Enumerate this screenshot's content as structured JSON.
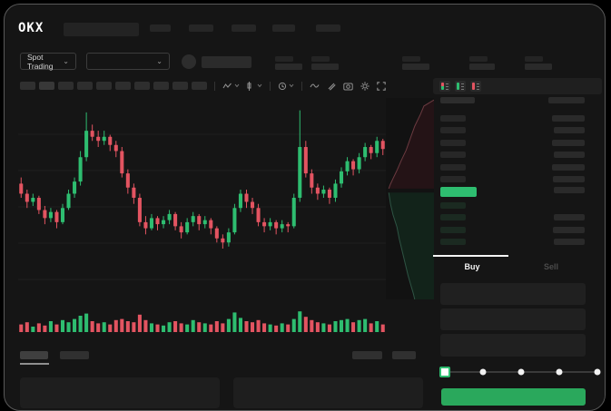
{
  "brand": {
    "logo_text": "OKX"
  },
  "subheader": {
    "market_type_dropdown": {
      "label": "Spot Trading",
      "chevron": "⌄"
    },
    "pair_dropdown": {
      "chevron": "⌄"
    }
  },
  "colors": {
    "up_green": "#2ebd70",
    "down_red": "#e35461",
    "buy_button_green": "#2aa85c",
    "bid_row_tint": "#1b2a21",
    "placeholder_gray": "#2b2b2b"
  },
  "icons": [
    "indicator-candles-icon",
    "candle-style-icon",
    "interval-icon",
    "line-tool-icon",
    "draw-pencil-icon",
    "camera-snapshot-icon",
    "settings-gear-icon",
    "fullscreen-icon",
    "orderbook-combined-icon",
    "orderbook-bids-icon",
    "orderbook-asks-icon"
  ],
  "chart_data": {
    "type": "candlestick",
    "title": "",
    "xlabel": "",
    "ylabel": "",
    "price_scale": [
      0,
      100
    ],
    "gridlines_rel_y": [
      42,
      82,
      122,
      162,
      202
    ],
    "candles": [
      [
        57,
        60,
        50,
        52
      ],
      [
        52,
        54,
        45,
        48
      ],
      [
        48,
        52,
        46,
        50
      ],
      [
        50,
        51,
        42,
        44
      ],
      [
        44,
        46,
        37,
        40
      ],
      [
        40,
        45,
        38,
        43
      ],
      [
        43,
        44,
        35,
        38
      ],
      [
        38,
        47,
        37,
        45
      ],
      [
        45,
        54,
        44,
        52
      ],
      [
        52,
        60,
        50,
        58
      ],
      [
        58,
        73,
        56,
        70
      ],
      [
        70,
        92,
        68,
        83
      ],
      [
        83,
        86,
        78,
        80
      ],
      [
        80,
        83,
        75,
        78
      ],
      [
        78,
        83,
        76,
        80
      ],
      [
        80,
        81,
        73,
        76
      ],
      [
        76,
        78,
        70,
        73
      ],
      [
        73,
        75,
        60,
        62
      ],
      [
        62,
        64,
        52,
        55
      ],
      [
        55,
        57,
        47,
        50
      ],
      [
        50,
        52,
        36,
        38
      ],
      [
        38,
        41,
        32,
        35
      ],
      [
        35,
        42,
        34,
        40
      ],
      [
        40,
        41,
        34,
        37
      ],
      [
        37,
        41,
        35,
        39
      ],
      [
        39,
        44,
        37,
        42
      ],
      [
        42,
        43,
        34,
        36
      ],
      [
        36,
        38,
        30,
        33
      ],
      [
        33,
        40,
        32,
        38
      ],
      [
        38,
        43,
        36,
        41
      ],
      [
        41,
        42,
        34,
        37
      ],
      [
        37,
        41,
        35,
        39
      ],
      [
        39,
        40,
        32,
        35
      ],
      [
        35,
        36,
        28,
        30
      ],
      [
        30,
        32,
        25,
        28
      ],
      [
        28,
        35,
        26,
        33
      ],
      [
        33,
        47,
        32,
        45
      ],
      [
        45,
        54,
        43,
        52
      ],
      [
        52,
        54,
        45,
        48
      ],
      [
        48,
        50,
        42,
        45
      ],
      [
        45,
        47,
        36,
        38
      ],
      [
        38,
        40,
        33,
        36
      ],
      [
        36,
        40,
        34,
        38
      ],
      [
        38,
        39,
        32,
        35
      ],
      [
        35,
        39,
        33,
        37
      ],
      [
        37,
        38,
        33,
        36
      ],
      [
        36,
        52,
        35,
        50
      ],
      [
        50,
        93,
        48,
        75
      ],
      [
        75,
        78,
        60,
        62
      ],
      [
        62,
        64,
        52,
        55
      ],
      [
        55,
        57,
        49,
        52
      ],
      [
        52,
        56,
        50,
        54
      ],
      [
        54,
        55,
        47,
        50
      ],
      [
        50,
        59,
        48,
        57
      ],
      [
        57,
        65,
        55,
        63
      ],
      [
        63,
        70,
        61,
        68
      ],
      [
        68,
        69,
        61,
        64
      ],
      [
        64,
        72,
        62,
        70
      ],
      [
        70,
        77,
        68,
        75
      ],
      [
        75,
        76,
        69,
        72
      ],
      [
        72,
        80,
        70,
        78
      ],
      [
        78,
        79,
        71,
        74
      ]
    ],
    "volumes": [
      35,
      45,
      25,
      40,
      30,
      50,
      35,
      55,
      45,
      60,
      75,
      85,
      50,
      40,
      45,
      35,
      55,
      60,
      50,
      45,
      80,
      55,
      40,
      35,
      30,
      45,
      50,
      40,
      35,
      55,
      45,
      40,
      35,
      50,
      40,
      60,
      90,
      65,
      50,
      45,
      55,
      40,
      35,
      30,
      40,
      35,
      60,
      95,
      70,
      55,
      45,
      40,
      35,
      50,
      55,
      60,
      45,
      55,
      60,
      40,
      50,
      35
    ],
    "depth": {
      "asks": [
        [
          1,
          0.01
        ],
        [
          0.79,
          0.04
        ],
        [
          0.72,
          0.08
        ],
        [
          0.6,
          0.14
        ],
        [
          0.51,
          0.2
        ],
        [
          0.42,
          0.26
        ],
        [
          0.32,
          0.31
        ],
        [
          0.23,
          0.36
        ],
        [
          0.15,
          0.4
        ],
        [
          0.09,
          0.43
        ],
        [
          0.06,
          0.45
        ]
      ],
      "bids": [
        [
          0.06,
          0.47
        ],
        [
          0.1,
          0.53
        ],
        [
          0.15,
          0.58
        ],
        [
          0.23,
          0.64
        ],
        [
          0.28,
          0.7
        ],
        [
          0.34,
          0.76
        ],
        [
          0.4,
          0.82
        ],
        [
          0.46,
          0.88
        ],
        [
          0.52,
          0.93
        ],
        [
          0.57,
          0.97
        ],
        [
          0.6,
          1.0
        ]
      ]
    }
  },
  "orderbook": {
    "header": {
      "left_w": 38,
      "right_w": 40
    },
    "asks": [
      {
        "p": 28,
        "a": 36
      },
      {
        "p": 28,
        "a": 34
      },
      {
        "p": 28,
        "a": 36
      },
      {
        "p": 28,
        "a": 34
      },
      {
        "p": 28,
        "a": 36
      },
      {
        "p": 28,
        "a": 35
      }
    ],
    "last_price_row": {
      "p": 40,
      "a": 34
    },
    "bids": [
      {
        "p": 28,
        "a": 0
      },
      {
        "p": 28,
        "a": 34
      },
      {
        "p": 28,
        "a": 35
      },
      {
        "p": 28,
        "a": 34
      }
    ]
  },
  "trade_panel": {
    "tabs": [
      {
        "label": "Buy",
        "active": true
      },
      {
        "label": "Sell",
        "active": false
      }
    ],
    "slider": {
      "stops": [
        0,
        25,
        50,
        75,
        100
      ],
      "active_index": 0
    },
    "submit_label": ""
  }
}
